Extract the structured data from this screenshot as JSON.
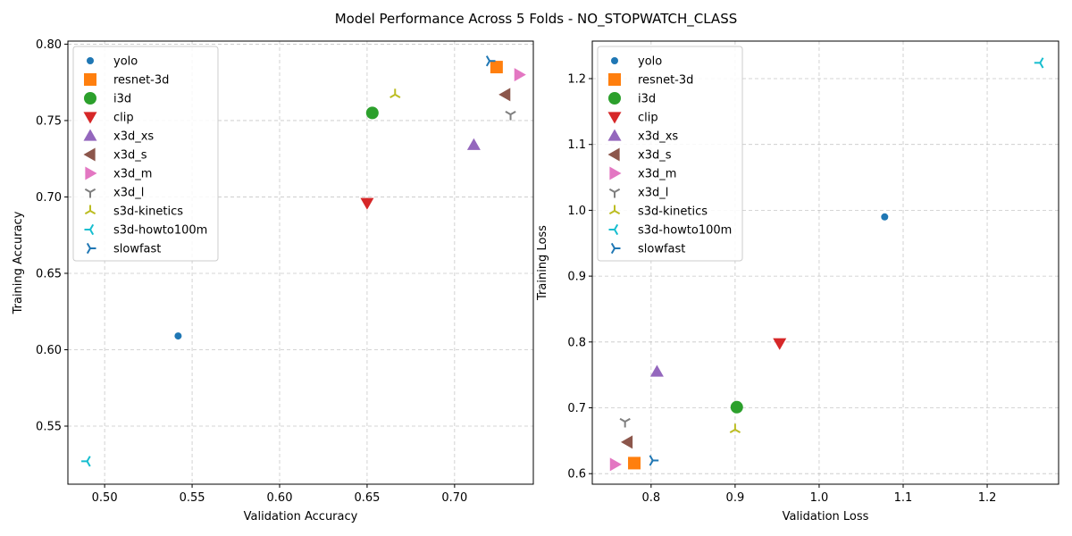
{
  "suptitle": "Model Performance Across 5 Folds - NO_STOPWATCH_CLASS",
  "chart_data": [
    {
      "type": "scatter",
      "xlabel": "Validation Accuracy",
      "ylabel": "Training Accuracy",
      "xlim": [
        0.479,
        0.745
      ],
      "ylim": [
        0.512,
        0.802
      ],
      "xticks": [
        0.5,
        0.55,
        0.6,
        0.65,
        0.7
      ],
      "yticks": [
        0.55,
        0.6,
        0.65,
        0.7,
        0.75,
        0.8
      ],
      "grid": true,
      "legend_position": "upper-left",
      "series": [
        {
          "name": "yolo",
          "color": "#1f77b4",
          "marker": "point",
          "x": 0.542,
          "y": 0.609
        },
        {
          "name": "resnet-3d",
          "color": "#ff7f0e",
          "marker": "square",
          "x": 0.724,
          "y": 0.785
        },
        {
          "name": "i3d",
          "color": "#2ca02c",
          "marker": "circle",
          "x": 0.653,
          "y": 0.755
        },
        {
          "name": "clip",
          "color": "#d62728",
          "marker": "triangle-down",
          "x": 0.65,
          "y": 0.696
        },
        {
          "name": "x3d_xs",
          "color": "#9467bd",
          "marker": "triangle-up",
          "x": 0.711,
          "y": 0.734
        },
        {
          "name": "x3d_s",
          "color": "#8c564b",
          "marker": "triangle-left",
          "x": 0.729,
          "y": 0.767
        },
        {
          "name": "x3d_m",
          "color": "#e377c2",
          "marker": "triangle-right",
          "x": 0.737,
          "y": 0.78
        },
        {
          "name": "x3d_l",
          "color": "#7f7f7f",
          "marker": "tri-down",
          "x": 0.732,
          "y": 0.754
        },
        {
          "name": "s3d-kinetics",
          "color": "#bcbd22",
          "marker": "tri-up",
          "x": 0.666,
          "y": 0.767
        },
        {
          "name": "s3d-howto100m",
          "color": "#17becf",
          "marker": "tri-left",
          "x": 0.49,
          "y": 0.527
        },
        {
          "name": "slowfast",
          "color": "#1f77b4",
          "marker": "tri-right",
          "x": 0.72,
          "y": 0.789
        }
      ]
    },
    {
      "type": "scatter",
      "xlabel": "Validation Loss",
      "ylabel": "Training Loss",
      "xlim": [
        0.73,
        1.285
      ],
      "ylim": [
        0.584,
        1.257
      ],
      "xticks": [
        0.8,
        0.9,
        1.0,
        1.1,
        1.2
      ],
      "yticks": [
        0.6,
        0.7,
        0.8,
        0.9,
        1.0,
        1.1,
        1.2
      ],
      "grid": true,
      "legend_position": "upper-left",
      "series": [
        {
          "name": "yolo",
          "color": "#1f77b4",
          "marker": "point",
          "x": 1.078,
          "y": 0.99
        },
        {
          "name": "resnet-3d",
          "color": "#ff7f0e",
          "marker": "square",
          "x": 0.78,
          "y": 0.616
        },
        {
          "name": "i3d",
          "color": "#2ca02c",
          "marker": "circle",
          "x": 0.902,
          "y": 0.701
        },
        {
          "name": "clip",
          "color": "#d62728",
          "marker": "triangle-down",
          "x": 0.953,
          "y": 0.798
        },
        {
          "name": "x3d_xs",
          "color": "#9467bd",
          "marker": "triangle-up",
          "x": 0.807,
          "y": 0.755
        },
        {
          "name": "x3d_s",
          "color": "#8c564b",
          "marker": "triangle-left",
          "x": 0.772,
          "y": 0.648
        },
        {
          "name": "x3d_m",
          "color": "#e377c2",
          "marker": "triangle-right",
          "x": 0.757,
          "y": 0.614
        },
        {
          "name": "x3d_l",
          "color": "#7f7f7f",
          "marker": "tri-down",
          "x": 0.769,
          "y": 0.679
        },
        {
          "name": "s3d-kinetics",
          "color": "#bcbd22",
          "marker": "tri-up",
          "x": 0.9,
          "y": 0.667
        },
        {
          "name": "s3d-howto100m",
          "color": "#17becf",
          "marker": "tri-left",
          "x": 1.263,
          "y": 1.224
        },
        {
          "name": "slowfast",
          "color": "#1f77b4",
          "marker": "tri-right",
          "x": 0.802,
          "y": 0.62
        }
      ]
    }
  ]
}
